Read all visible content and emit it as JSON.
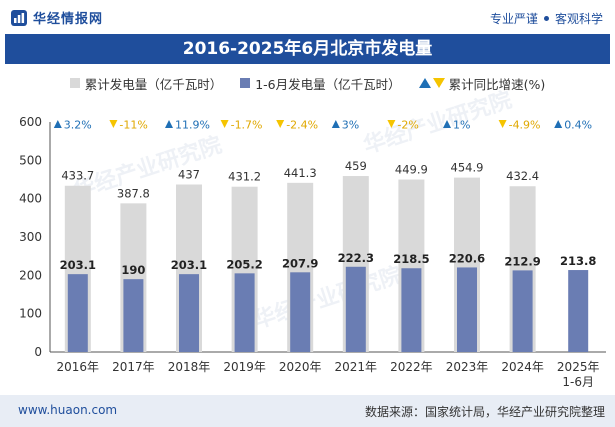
{
  "header": {
    "logo_text": "华经情报网",
    "tagline_left": "专业严谨",
    "tagline_right": "客观科学"
  },
  "title": "2016-2025年6月北京市发电量",
  "legend": {
    "cumulative": "累计发电量（亿千瓦时）",
    "halfyear": "1-6月发电量（亿千瓦时）",
    "growth": "累计同比增速(%)"
  },
  "watermark": "华经产业研究院",
  "footer": {
    "url": "www.huaon.com",
    "source": "数据来源：国家统计局，华经产业研究院整理"
  },
  "colors": {
    "cumulative": "#d9d9d9",
    "halfyear": "#6a7db3",
    "growth_up": "#1f6fb5",
    "growth_down": "#f5c400",
    "title_bg": "#1f4e9c"
  },
  "chart_data": {
    "type": "bar",
    "categories": [
      "2016年",
      "2017年",
      "2018年",
      "2019年",
      "2020年",
      "2021年",
      "2022年",
      "2023年",
      "2024年",
      "2025年 1-6月"
    ],
    "ylim": [
      0,
      600
    ],
    "yticks": [
      0,
      100,
      200,
      300,
      400,
      500,
      600
    ],
    "series": [
      {
        "name": "累计发电量（亿千瓦时）",
        "values": [
          433.7,
          387.8,
          437,
          431.2,
          441.3,
          459,
          449.9,
          454.9,
          432.4,
          null
        ],
        "labels": [
          "433.7",
          "387.8",
          "437",
          "431.2",
          "441.3",
          "459",
          "449.9",
          "454.9",
          "432.4",
          ""
        ]
      },
      {
        "name": "1-6月发电量（亿千瓦时）",
        "values": [
          203.1,
          190,
          203.1,
          205.2,
          207.9,
          222.3,
          218.5,
          220.6,
          212.9,
          213.8
        ],
        "labels": [
          "203.1",
          "190",
          "203.1",
          "205.2",
          "207.9",
          "222.3",
          "218.5",
          "220.6",
          "212.9",
          "213.8"
        ]
      }
    ],
    "growth": {
      "name": "累计同比增速(%)",
      "values": [
        3.2,
        -11,
        11.9,
        -1.7,
        -2.4,
        3,
        -2,
        1,
        -4.9,
        0.4
      ],
      "labels": [
        "3.2%",
        "-11%",
        "11.9%",
        "-1.7%",
        "-2.4%",
        "3%",
        "-2%",
        "1%",
        "-4.9%",
        "0.4%"
      ]
    }
  }
}
